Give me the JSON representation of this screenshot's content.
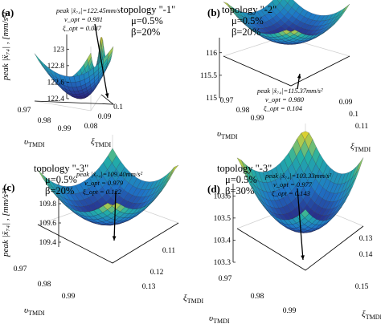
{
  "chart_data": [
    {
      "type": "surface",
      "panel": "(a)",
      "topology": "topology \"-1\"",
      "mu": "μ=0.5%",
      "beta": "β=20%",
      "zlabel": "peak |ẍ₇₄| , [mm/s²]",
      "xlabel": "υ_TMDI",
      "ylabel": "ξ_TMDI",
      "z_ticks": [
        "123",
        "122.8",
        "122.6",
        "122.4"
      ],
      "x_ticks": [
        "0.97",
        "0.98",
        "0.99"
      ],
      "y_ticks": [
        "0.08",
        "0.09",
        "0.1"
      ],
      "zlim": [
        122.4,
        123.1
      ],
      "xlim": [
        0.97,
        0.99
      ],
      "ylim": [
        0.08,
        0.1
      ],
      "optimum": {
        "peak": 122.45,
        "v_opt": 0.981,
        "xi_opt": 0.087
      },
      "annotation": {
        "peak": "peak |ẍ₇₄|=122.45mm/s²",
        "v": "ν_opt = 0.981",
        "xi": "ξ_opt = 0.087"
      }
    },
    {
      "type": "surface",
      "panel": "(b)",
      "topology": "topology \"-2\"",
      "mu": "μ=0.5%",
      "beta": "β=20%",
      "zlabel": "",
      "xlabel": "υ_TMDI",
      "ylabel": "ξ_TMDI",
      "z_ticks": [
        "116",
        "115.5",
        "115"
      ],
      "x_ticks": [
        "0.97",
        "0.98",
        "0.99"
      ],
      "y_ticks": [
        "0.09",
        "0.1",
        "0.11"
      ],
      "zlim": [
        115.0,
        116.2
      ],
      "xlim": [
        0.97,
        0.99
      ],
      "ylim": [
        0.09,
        0.11
      ],
      "optimum": {
        "peak": 115.37,
        "v_opt": 0.98,
        "xi_opt": 0.104
      },
      "annotation": {
        "peak": "peak |ẍ₇₄|=115.37mm/s²",
        "v": "ν_opt = 0.980",
        "xi": "ξ_opt = 0.104"
      }
    },
    {
      "type": "surface",
      "panel": "(c)",
      "topology": "topology \"-3\"",
      "mu": "μ=0.5%",
      "beta": "β=20%",
      "zlabel": "peak |ẍ₇₄| , [mm/s²]",
      "xlabel": "υ_TMDI",
      "ylabel": "ξ_TMDI",
      "z_ticks": [
        "109.8",
        "109.6",
        "109.4"
      ],
      "x_ticks": [
        "0.97",
        "0.98",
        "0.99"
      ],
      "y_ticks": [
        "0.11",
        "0.12",
        "0.13"
      ],
      "zlim": [
        109.35,
        109.95
      ],
      "xlim": [
        0.97,
        0.99
      ],
      "ylim": [
        0.11,
        0.13
      ],
      "optimum": {
        "peak": 109.4,
        "v_opt": 0.979,
        "xi_opt": 0.122
      },
      "annotation": {
        "peak": "peak |ẍ₇₄|=109.40mm/s²",
        "v": "ν_opt = 0.979",
        "xi": "ξ_opt = 0.122"
      }
    },
    {
      "type": "surface",
      "panel": "(d)",
      "topology": "topology \"-3\"",
      "mu": "μ=0.5%",
      "beta": "β=30%",
      "zlabel": "",
      "xlabel": "υ_TMDI",
      "ylabel": "ξ_TMDI",
      "z_ticks": [
        "103.6",
        "103.5",
        "103.4",
        "103.3"
      ],
      "x_ticks": [
        "0.97",
        "0.98",
        "0.99"
      ],
      "y_ticks": [
        "0.13",
        "0.14",
        "0.15"
      ],
      "zlim": [
        103.3,
        103.62
      ],
      "xlim": [
        0.97,
        0.99
      ],
      "ylim": [
        0.13,
        0.15
      ],
      "optimum": {
        "peak": 103.33,
        "v_opt": 0.977,
        "xi_opt": 0.143
      },
      "annotation": {
        "peak": "peak |ẍ₇₄|=103.33mm/s²",
        "v": "ν_opt = 0.977",
        "xi": "ξ_opt = 0.143"
      }
    }
  ],
  "colors": {
    "low": "#2b1c7a",
    "mid1": "#1e75c8",
    "mid2": "#23b0a5",
    "high": "#e8d328",
    "grid": "#222233"
  }
}
